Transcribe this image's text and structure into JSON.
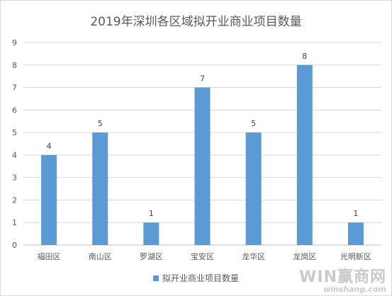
{
  "chart_data": {
    "type": "bar",
    "title": "2019年深圳各区域拟开业商业项目数量",
    "categories": [
      "福田区",
      "南山区",
      "罗湖区",
      "宝安区",
      "龙华区",
      "龙岗区",
      "光明新区"
    ],
    "series": [
      {
        "name": "拟开业商业项目数量",
        "values": [
          4,
          5,
          1,
          7,
          5,
          8,
          1
        ],
        "color": "#5b9bd5"
      }
    ],
    "ylim": [
      0,
      9
    ],
    "yticks": [
      0,
      1,
      2,
      3,
      4,
      5,
      6,
      7,
      8,
      9
    ],
    "grid": true,
    "legend_position": "bottom",
    "data_labels": true
  },
  "watermark": {
    "logo": "WIN赢商网",
    "site": "winshang.com"
  }
}
